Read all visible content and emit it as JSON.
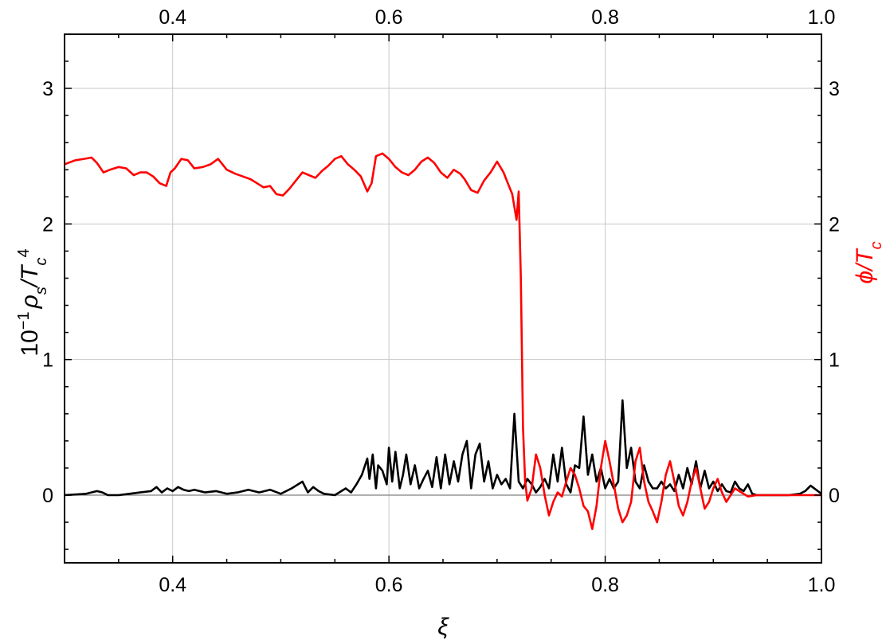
{
  "chart_data": {
    "type": "line",
    "title": "",
    "xlabel": "ξ",
    "ylabel_left": "10⁻¹ ρs/Tc⁴",
    "ylabel_right": "ϕ/Tc",
    "xlim": [
      0.3,
      1.0
    ],
    "ylim": [
      -0.5,
      3.35
    ],
    "x_ticks": [
      0.4,
      0.6,
      0.8,
      1.0
    ],
    "x_tick_labels": [
      "0.4",
      "0.6",
      "0.8",
      "1.0"
    ],
    "y_ticks": [
      0,
      1,
      2,
      3
    ],
    "y_tick_labels": [
      "0",
      "1",
      "2",
      "3"
    ],
    "grid": true,
    "legend": null,
    "colors": {
      "phi": "#ff0000",
      "rho": "#000000",
      "grid": "#c8c8c8",
      "zero_line": "#808080"
    },
    "series": [
      {
        "name": "ϕ/Tc",
        "axis": "right",
        "color": "#ff0000",
        "x": [
          0.3,
          0.31,
          0.318,
          0.325,
          0.33,
          0.336,
          0.342,
          0.35,
          0.357,
          0.364,
          0.37,
          0.376,
          0.382,
          0.388,
          0.394,
          0.398,
          0.402,
          0.408,
          0.414,
          0.42,
          0.428,
          0.435,
          0.442,
          0.45,
          0.458,
          0.465,
          0.472,
          0.478,
          0.484,
          0.49,
          0.496,
          0.502,
          0.508,
          0.514,
          0.52,
          0.526,
          0.532,
          0.538,
          0.544,
          0.55,
          0.556,
          0.562,
          0.568,
          0.574,
          0.58,
          0.584,
          0.588,
          0.594,
          0.6,
          0.606,
          0.612,
          0.618,
          0.624,
          0.63,
          0.636,
          0.642,
          0.648,
          0.654,
          0.66,
          0.666,
          0.67,
          0.676,
          0.682,
          0.688,
          0.694,
          0.7,
          0.706,
          0.71,
          0.714,
          0.718,
          0.72,
          0.722,
          0.724,
          0.726,
          0.728,
          0.732,
          0.736,
          0.74,
          0.744,
          0.748,
          0.752,
          0.756,
          0.76,
          0.764,
          0.768,
          0.772,
          0.776,
          0.78,
          0.784,
          0.788,
          0.792,
          0.796,
          0.8,
          0.804,
          0.808,
          0.812,
          0.816,
          0.82,
          0.824,
          0.828,
          0.832,
          0.836,
          0.84,
          0.844,
          0.848,
          0.852,
          0.856,
          0.86,
          0.864,
          0.868,
          0.872,
          0.876,
          0.88,
          0.884,
          0.888,
          0.892,
          0.896,
          0.9,
          0.904,
          0.908,
          0.912,
          0.916,
          0.92,
          0.926,
          0.932,
          0.94,
          0.95,
          0.97,
          1.0
        ],
        "values": [
          2.44,
          2.47,
          2.48,
          2.49,
          2.45,
          2.38,
          2.4,
          2.42,
          2.41,
          2.36,
          2.38,
          2.38,
          2.35,
          2.3,
          2.28,
          2.38,
          2.41,
          2.48,
          2.47,
          2.41,
          2.42,
          2.44,
          2.48,
          2.4,
          2.37,
          2.35,
          2.33,
          2.3,
          2.27,
          2.28,
          2.22,
          2.21,
          2.26,
          2.32,
          2.38,
          2.36,
          2.34,
          2.39,
          2.43,
          2.48,
          2.5,
          2.44,
          2.4,
          2.35,
          2.24,
          2.3,
          2.5,
          2.52,
          2.48,
          2.42,
          2.38,
          2.36,
          2.4,
          2.46,
          2.49,
          2.45,
          2.38,
          2.34,
          2.4,
          2.37,
          2.33,
          2.25,
          2.23,
          2.32,
          2.38,
          2.46,
          2.38,
          2.3,
          2.22,
          2.03,
          2.24,
          1.6,
          0.5,
          0.1,
          -0.04,
          0.05,
          0.3,
          0.2,
          0.0,
          -0.15,
          -0.05,
          0.02,
          -0.01,
          0.1,
          0.2,
          0.15,
          0.05,
          -0.08,
          -0.12,
          -0.25,
          -0.08,
          0.2,
          0.4,
          0.25,
          0.08,
          -0.1,
          -0.2,
          -0.15,
          -0.05,
          0.25,
          0.35,
          0.1,
          -0.05,
          -0.12,
          -0.2,
          -0.05,
          0.15,
          0.25,
          0.1,
          -0.08,
          -0.15,
          -0.05,
          0.1,
          0.2,
          0.05,
          -0.1,
          -0.05,
          0.05,
          0.12,
          0.02,
          -0.05,
          0.0,
          0.05,
          0.02,
          -0.01,
          0.0,
          0.0,
          0.0,
          0.0
        ]
      },
      {
        "name": "10⁻¹ ρs/Tc⁴",
        "axis": "left",
        "color": "#000000",
        "x": [
          0.3,
          0.32,
          0.33,
          0.335,
          0.34,
          0.35,
          0.36,
          0.37,
          0.38,
          0.385,
          0.39,
          0.395,
          0.4,
          0.405,
          0.41,
          0.415,
          0.42,
          0.43,
          0.44,
          0.45,
          0.46,
          0.47,
          0.48,
          0.49,
          0.5,
          0.51,
          0.52,
          0.525,
          0.53,
          0.535,
          0.54,
          0.55,
          0.56,
          0.565,
          0.57,
          0.575,
          0.58,
          0.582,
          0.585,
          0.588,
          0.59,
          0.594,
          0.598,
          0.6,
          0.603,
          0.606,
          0.61,
          0.613,
          0.616,
          0.62,
          0.624,
          0.628,
          0.632,
          0.636,
          0.64,
          0.644,
          0.648,
          0.652,
          0.656,
          0.66,
          0.664,
          0.668,
          0.672,
          0.676,
          0.68,
          0.684,
          0.688,
          0.692,
          0.696,
          0.7,
          0.704,
          0.708,
          0.712,
          0.716,
          0.72,
          0.724,
          0.728,
          0.732,
          0.736,
          0.74,
          0.744,
          0.748,
          0.752,
          0.756,
          0.76,
          0.764,
          0.768,
          0.772,
          0.776,
          0.78,
          0.784,
          0.788,
          0.792,
          0.796,
          0.8,
          0.804,
          0.808,
          0.812,
          0.816,
          0.82,
          0.824,
          0.828,
          0.832,
          0.836,
          0.84,
          0.844,
          0.848,
          0.852,
          0.856,
          0.86,
          0.864,
          0.868,
          0.872,
          0.876,
          0.88,
          0.884,
          0.888,
          0.892,
          0.896,
          0.9,
          0.904,
          0.908,
          0.912,
          0.916,
          0.92,
          0.924,
          0.928,
          0.932,
          0.936,
          0.94,
          0.95,
          0.96,
          0.97,
          0.98,
          0.985,
          0.99,
          1.0
        ],
        "values": [
          0.0,
          0.01,
          0.03,
          0.02,
          0.0,
          0.0,
          0.01,
          0.02,
          0.03,
          0.06,
          0.02,
          0.05,
          0.03,
          0.06,
          0.04,
          0.03,
          0.04,
          0.02,
          0.03,
          0.01,
          0.02,
          0.04,
          0.02,
          0.04,
          0.01,
          0.05,
          0.1,
          0.02,
          0.06,
          0.03,
          0.01,
          0.0,
          0.05,
          0.02,
          0.08,
          0.15,
          0.27,
          0.12,
          0.3,
          0.05,
          0.22,
          0.18,
          0.08,
          0.35,
          0.1,
          0.32,
          0.05,
          0.15,
          0.3,
          0.08,
          0.22,
          0.05,
          0.12,
          0.18,
          0.06,
          0.28,
          0.05,
          0.3,
          0.08,
          0.25,
          0.1,
          0.3,
          0.4,
          0.05,
          0.3,
          0.38,
          0.1,
          0.25,
          0.05,
          0.15,
          0.08,
          0.12,
          0.05,
          0.6,
          0.1,
          0.05,
          0.12,
          0.08,
          0.02,
          0.06,
          0.12,
          0.05,
          0.3,
          0.1,
          0.35,
          0.08,
          0.02,
          0.22,
          0.2,
          0.58,
          0.15,
          0.3,
          0.1,
          0.2,
          0.05,
          0.12,
          0.05,
          0.1,
          0.7,
          0.2,
          0.35,
          0.1,
          0.05,
          0.22,
          0.1,
          0.05,
          0.05,
          0.1,
          0.05,
          0.08,
          0.03,
          0.15,
          0.05,
          0.2,
          0.08,
          0.25,
          0.05,
          0.18,
          0.05,
          0.1,
          0.03,
          0.08,
          0.03,
          0.02,
          0.1,
          0.05,
          0.03,
          0.08,
          0.01,
          0.0,
          0.0,
          0.0,
          0.0,
          0.01,
          0.03,
          0.07,
          0.01
        ]
      }
    ]
  }
}
